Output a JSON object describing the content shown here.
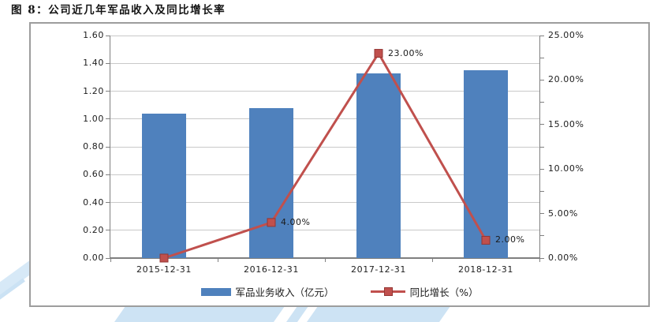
{
  "figure": {
    "title": "图 8：公司近几年军品收入及同比增长率"
  },
  "chart_data": {
    "type": "combo-bar-line",
    "title": "图 8：公司近几年军品收入及同比增长率",
    "categories": [
      "2015-12-31",
      "2016-12-31",
      "2017-12-31",
      "2018-12-31"
    ],
    "series": [
      {
        "name": "军品业务收入（亿元）",
        "chart": "bar",
        "axis": "left",
        "values": [
          1.04,
          1.08,
          1.33,
          1.35
        ],
        "color": "#4f81bd"
      },
      {
        "name": "同比增长（%）",
        "chart": "line",
        "axis": "right",
        "values": [
          0.0,
          4.0,
          23.0,
          2.0
        ],
        "point_labels": [
          "",
          "4.00%",
          "23.00%",
          "2.00%"
        ],
        "color": "#c0504d",
        "marker": "square",
        "marker_border_color": "#943634"
      }
    ],
    "left_axis": {
      "min": 0.0,
      "max": 1.6,
      "step": 0.2,
      "labels": [
        "0.00",
        "0.20",
        "0.40",
        "0.60",
        "0.80",
        "1.00",
        "1.20",
        "1.40",
        "1.60"
      ]
    },
    "right_axis": {
      "min": 0.0,
      "max": 25.0,
      "step": 5.0,
      "minor_step": 2.5,
      "labels": [
        "0.00%",
        "5.00%",
        "10.00%",
        "15.00%",
        "20.00%",
        "25.00%"
      ]
    },
    "grid": true,
    "legend_position": "bottom",
    "colors": {
      "gridline": "#c9c9c9",
      "axis_line": "#808080",
      "frame_border": "#9d9d9d",
      "text": "#202020",
      "watermark": "#cde3f4"
    }
  }
}
